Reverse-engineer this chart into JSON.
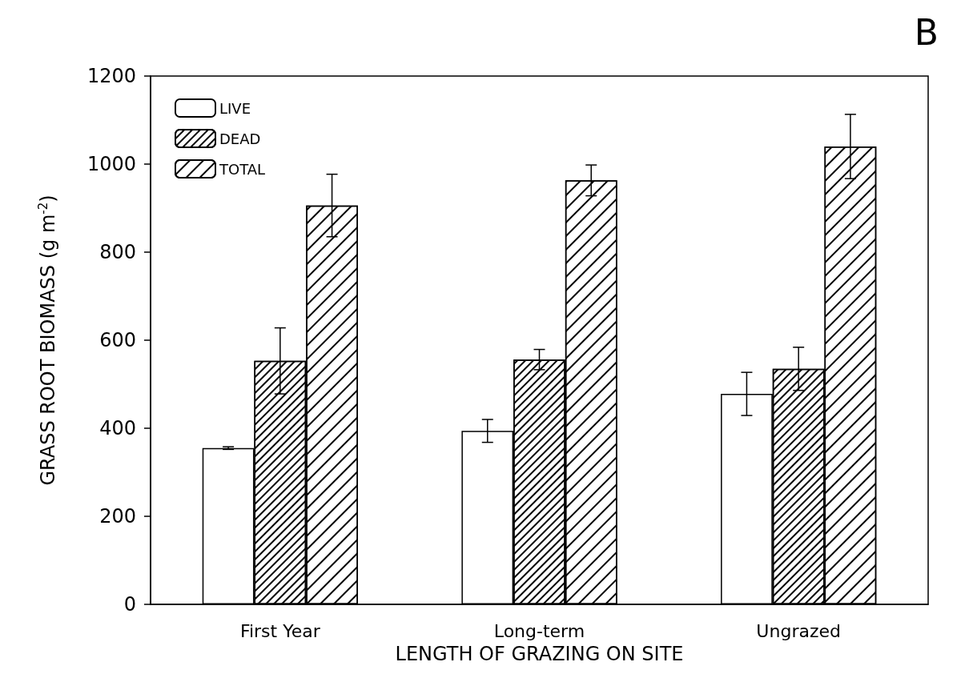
{
  "chart_data": {
    "type": "bar",
    "title": "B",
    "xlabel": "LENGTH OF GRAZING ON SITE",
    "ylabel": "GRASS ROOT BIOMASS (g m$^{-2}$)",
    "categories": [
      "First Year",
      "Long-term",
      "Ungrazed"
    ],
    "series": [
      {
        "name": "LIVE",
        "color": "#ffffff",
        "values": [
          355,
          394,
          478
        ],
        "errors": [
          3,
          26,
          49
        ]
      },
      {
        "name": "DEAD",
        "color": "#ffffff",
        "values": [
          553,
          556,
          535
        ],
        "errors": [
          75,
          23,
          49
        ]
      },
      {
        "name": "TOTAL",
        "color": "#ffffff",
        "values": [
          906,
          963,
          1040
        ],
        "errors": [
          71,
          35,
          73
        ]
      }
    ],
    "ylim": [
      0,
      1200
    ],
    "yticks": [
      0,
      200,
      400,
      600,
      800,
      1000,
      1200
    ],
    "grid": false,
    "legend": "top left"
  }
}
